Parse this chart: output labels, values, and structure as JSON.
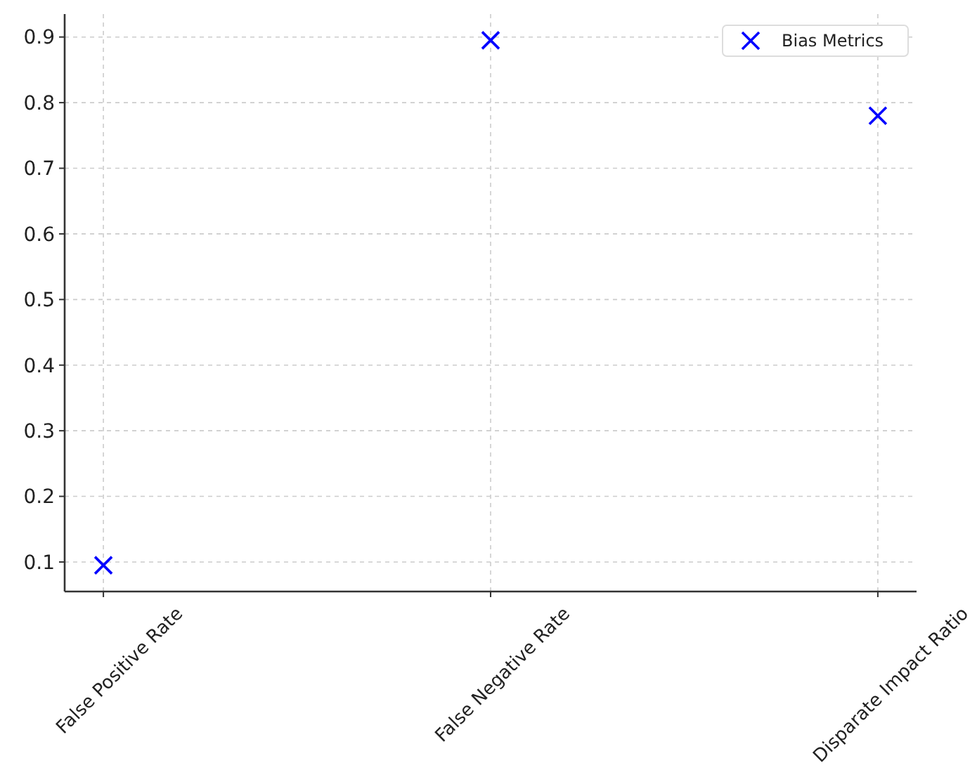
{
  "chart_data": {
    "type": "scatter",
    "categories": [
      "False Positive Rate",
      "False Negative Rate",
      "Disparate Impact Ratio"
    ],
    "series": [
      {
        "name": "Bias Metrics",
        "color": "#0000ff",
        "values": [
          0.095,
          0.895,
          0.78
        ]
      }
    ],
    "ylim": [
      0.055,
      0.935
    ],
    "yticks": [
      {
        "value": 0.1,
        "label": "0.1"
      },
      {
        "value": 0.2,
        "label": "0.2"
      },
      {
        "value": 0.3,
        "label": "0.3"
      },
      {
        "value": 0.4,
        "label": "0.4"
      },
      {
        "value": 0.5,
        "label": "0.5"
      },
      {
        "value": 0.6,
        "label": "0.6"
      },
      {
        "value": 0.7,
        "label": "0.7"
      },
      {
        "value": 0.8,
        "label": "0.8"
      },
      {
        "value": 0.9,
        "label": "0.9"
      }
    ],
    "grid": true,
    "legend": "top right",
    "marker": "cross"
  }
}
